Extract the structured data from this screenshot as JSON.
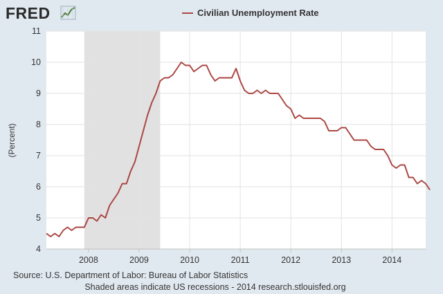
{
  "logo": {
    "text": "FRED",
    "icon": "line-chart-logo-icon"
  },
  "colors": {
    "background": "#e1e9f0",
    "plot_background": "#ffffff",
    "series": "#aa4643",
    "recession": "#e1e1e1",
    "grid": "#e2e2e2"
  },
  "footer": {
    "source": "Source: U.S. Department of Labor: Bureau of Labor Statistics",
    "note": "Shaded areas indicate US recessions - 2014 research.stlouisfed.org"
  },
  "chart_data": {
    "type": "line",
    "ylabel": "(Percent)",
    "xlabel": "",
    "ylim": [
      4,
      11
    ],
    "yticks": [
      4,
      5,
      6,
      7,
      8,
      9,
      10,
      11
    ],
    "xlim": [
      "2007-03",
      "2014-09"
    ],
    "xticks": [
      "2008",
      "2009",
      "2010",
      "2011",
      "2012",
      "2013",
      "2014"
    ],
    "grid": true,
    "legend_position": "top-center",
    "recessions": [
      {
        "start": "2007-12",
        "end": "2009-06"
      }
    ],
    "series": [
      {
        "name": "Civilian Unemployment Rate",
        "start": "2007-03",
        "frequency": "monthly",
        "values": [
          4.5,
          4.4,
          4.5,
          4.4,
          4.6,
          4.7,
          4.6,
          4.7,
          4.7,
          4.7,
          5.0,
          5.0,
          4.9,
          5.1,
          5.0,
          5.4,
          5.6,
          5.8,
          6.1,
          6.1,
          6.5,
          6.8,
          7.3,
          7.8,
          8.3,
          8.7,
          9.0,
          9.4,
          9.5,
          9.5,
          9.6,
          9.8,
          10.0,
          9.9,
          9.9,
          9.7,
          9.8,
          9.9,
          9.9,
          9.6,
          9.4,
          9.5,
          9.5,
          9.5,
          9.5,
          9.8,
          9.4,
          9.1,
          9.0,
          9.0,
          9.1,
          9.0,
          9.1,
          9.0,
          9.0,
          9.0,
          8.8,
          8.6,
          8.5,
          8.2,
          8.3,
          8.2,
          8.2,
          8.2,
          8.2,
          8.2,
          8.1,
          7.8,
          7.8,
          7.8,
          7.9,
          7.9,
          7.7,
          7.5,
          7.5,
          7.5,
          7.5,
          7.3,
          7.2,
          7.2,
          7.2,
          7.0,
          6.7,
          6.6,
          6.7,
          6.7,
          6.3,
          6.3,
          6.1,
          6.2,
          6.1,
          5.9
        ]
      }
    ]
  }
}
